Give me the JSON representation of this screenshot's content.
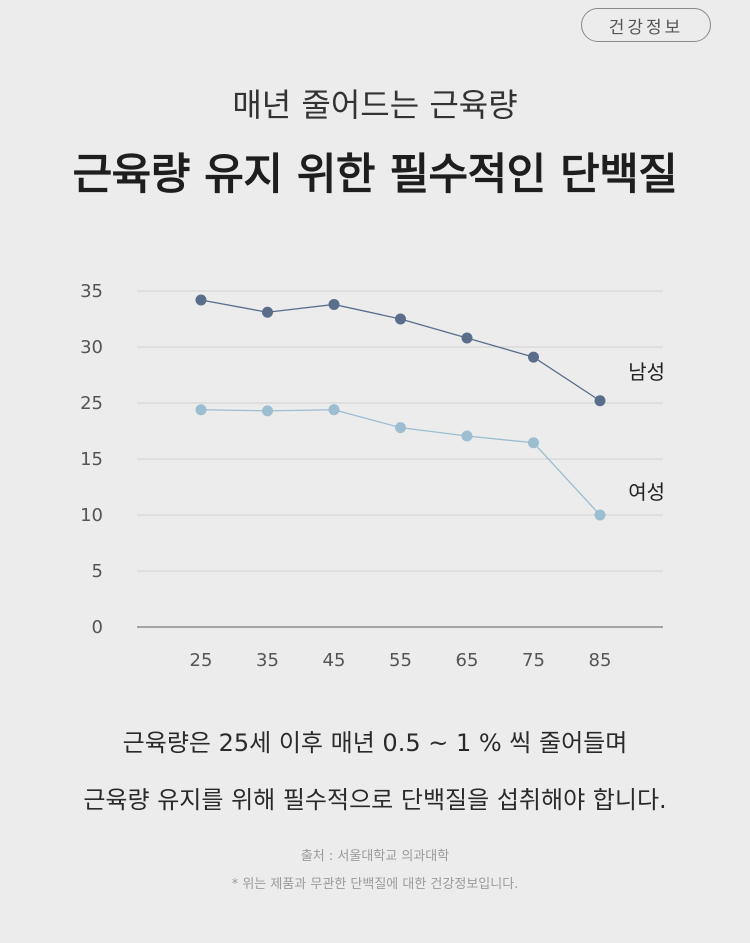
{
  "badge": "건강정보",
  "subtitle": "매년 줄어드는 근육량",
  "title": "근육량 유지 위한 필수적인 단백질",
  "chart_data": {
    "type": "line",
    "x": [
      "25",
      "35",
      "45",
      "55",
      "65",
      "75",
      "85"
    ],
    "yticks": [
      "0",
      "5",
      "10",
      "15",
      "25",
      "30",
      "35"
    ],
    "ylim": [
      0,
      35
    ],
    "grid": true,
    "series": [
      {
        "name": "남성",
        "values": [
          34.2,
          33.1,
          33.8,
          32.5,
          30.8,
          29.1,
          25.2
        ],
        "color": "#5a6e8c"
      },
      {
        "name": "여성",
        "values": [
          23.8,
          23.6,
          23.8,
          20.6,
          19.1,
          17.9,
          10.0
        ],
        "color": "#9dbdd1"
      }
    ]
  },
  "description": {
    "line1": "근육량은 25세 이후 매년 0.5 ~ 1 % 씩 줄어들며",
    "line2": "근육량 유지를 위해 필수적으로 단백질을 섭취해야 합니다."
  },
  "notes": {
    "source": "출처 : 서울대학교 의과대학",
    "disclaimer": "* 위는 제품과 무관한 단백질에 대한 건강정보입니다."
  }
}
